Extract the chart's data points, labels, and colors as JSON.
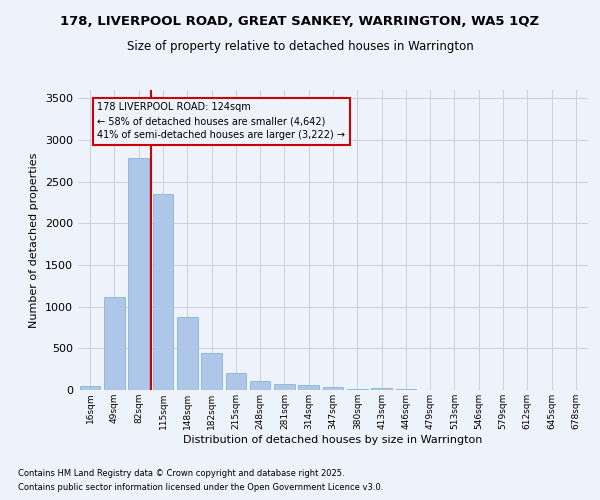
{
  "title_line1": "178, LIVERPOOL ROAD, GREAT SANKEY, WARRINGTON, WA5 1QZ",
  "title_line2": "Size of property relative to detached houses in Warrington",
  "xlabel": "Distribution of detached houses by size in Warrington",
  "ylabel": "Number of detached properties",
  "categories": [
    "16sqm",
    "49sqm",
    "82sqm",
    "115sqm",
    "148sqm",
    "182sqm",
    "215sqm",
    "248sqm",
    "281sqm",
    "314sqm",
    "347sqm",
    "380sqm",
    "413sqm",
    "446sqm",
    "479sqm",
    "513sqm",
    "546sqm",
    "579sqm",
    "612sqm",
    "645sqm",
    "678sqm"
  ],
  "values": [
    45,
    1120,
    2780,
    2350,
    880,
    450,
    205,
    110,
    75,
    55,
    35,
    15,
    25,
    10,
    5,
    2,
    1,
    1,
    0,
    0,
    0
  ],
  "bar_color": "#aec6e8",
  "bar_edge_color": "#7aafd4",
  "vline_color": "#cc0000",
  "annotation_title": "178 LIVERPOOL ROAD: 124sqm",
  "annotation_line2": "← 58% of detached houses are smaller (4,642)",
  "annotation_line3": "41% of semi-detached houses are larger (3,222) →",
  "annotation_box_color": "#cc0000",
  "ylim": [
    0,
    3600
  ],
  "yticks": [
    0,
    500,
    1000,
    1500,
    2000,
    2500,
    3000,
    3500
  ],
  "footnote1": "Contains HM Land Registry data © Crown copyright and database right 2025.",
  "footnote2": "Contains public sector information licensed under the Open Government Licence v3.0.",
  "bg_color": "#eef2fb",
  "grid_color": "#c8cfe8"
}
